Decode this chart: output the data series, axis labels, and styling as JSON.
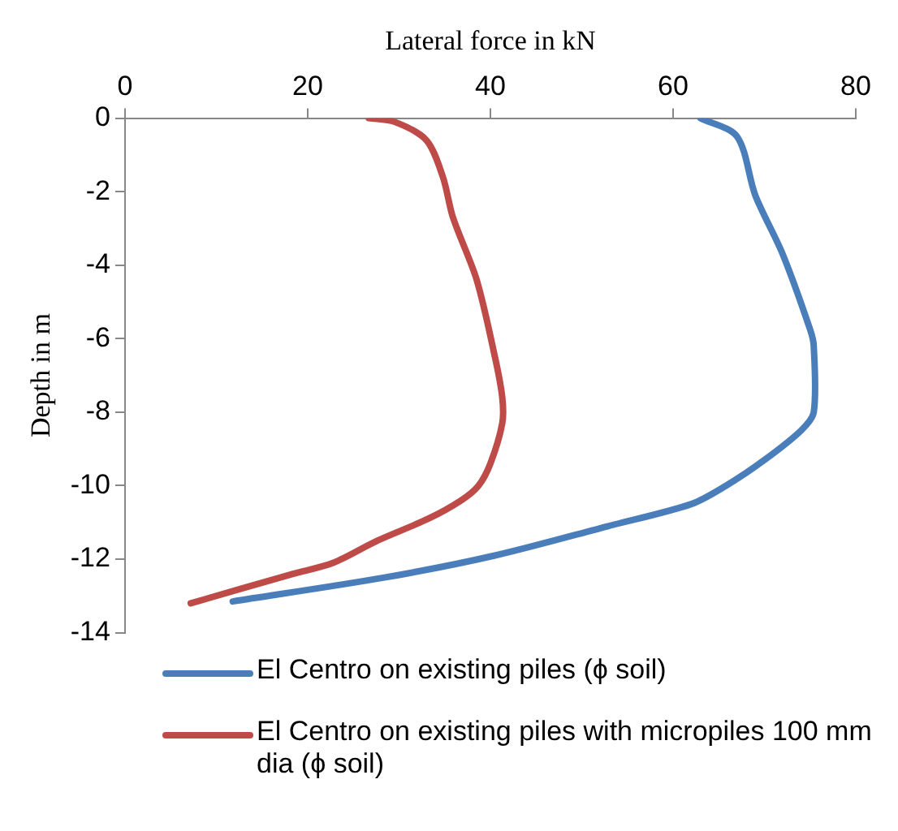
{
  "chart_data": {
    "type": "line",
    "xlabel": "Lateral force in kN",
    "ylabel": "Depth in m",
    "xlim": [
      0,
      80
    ],
    "xticks": [
      0,
      20,
      40,
      60,
      80
    ],
    "ylim": [
      -14,
      0
    ],
    "yticks": [
      -14,
      -12,
      -10,
      -8,
      -6,
      -4,
      -2,
      0
    ],
    "grid": false,
    "legend": "bottom",
    "marker": "none",
    "line_style": "solid",
    "series": [
      {
        "name": "El Centro on existing piles (ϕ soil)",
        "color": "#4a7ebb",
        "x": [
          63,
          67,
          69,
          72,
          75,
          75.4,
          75.4,
          74,
          70,
          65.8,
          62,
          52.9,
          40.5,
          28.4,
          11.8
        ],
        "values": [
          0,
          -0.5,
          -2.1,
          -3.7,
          -5.75,
          -6.2,
          -8,
          -8.5,
          -9.3,
          -10,
          -10.5,
          -11.1,
          -11.9,
          -12.5,
          -13.15
        ]
      },
      {
        "name": "El Centro on existing piles with micropiles 100 mm dia (ϕ soil)",
        "color": "#be4b48",
        "x": [
          26.7,
          29.5,
          33,
          34.8,
          35.9,
          38.5,
          40.5,
          41.3,
          41.3,
          40,
          38.7,
          36.8,
          33.2,
          27.6,
          22.8,
          18.4,
          7.2
        ],
        "values": [
          0,
          -0.1,
          -0.6,
          -1.6,
          -2.7,
          -4.4,
          -6.5,
          -7.6,
          -8.3,
          -9.4,
          -10,
          -10.4,
          -10.9,
          -11.5,
          -12.1,
          -12.4,
          -13.2
        ]
      }
    ]
  }
}
